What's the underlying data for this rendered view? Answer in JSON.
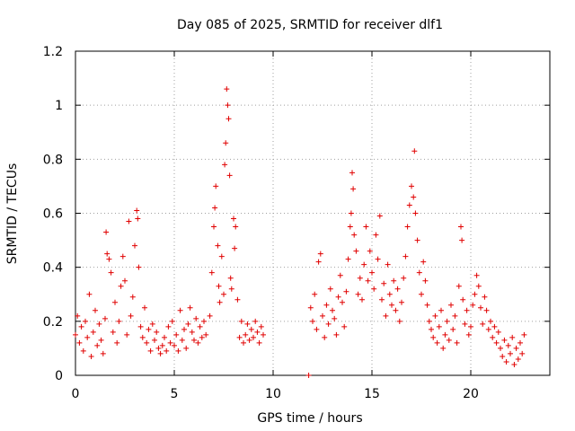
{
  "chart_data": {
    "type": "scatter",
    "title": "Day 085 of 2025, SRMTID for receiver dlf1",
    "xlabel": "GPS time / hours",
    "ylabel": "SRMTID / TECUs",
    "xlim": [
      0,
      24
    ],
    "ylim": [
      0,
      1.2
    ],
    "xticks": [
      0,
      5,
      10,
      15,
      20
    ],
    "xtick_labels": [
      "0",
      "5",
      "10",
      "15",
      "20"
    ],
    "yticks": [
      0,
      0.2,
      0.4,
      0.6,
      0.8,
      1,
      1.2
    ],
    "ytick_labels": [
      "0",
      "0.2",
      "0.4",
      "0.6",
      "0.8",
      "1",
      "1.2"
    ],
    "grid": true,
    "marker": "+",
    "color": "#e00000",
    "series": [
      {
        "name": "SRMTID",
        "points": [
          [
            0.0,
            0.15
          ],
          [
            0.1,
            0.22
          ],
          [
            0.2,
            0.12
          ],
          [
            0.3,
            0.18
          ],
          [
            0.4,
            0.09
          ],
          [
            0.5,
            0.2
          ],
          [
            0.6,
            0.14
          ],
          [
            0.7,
            0.3
          ],
          [
            0.8,
            0.07
          ],
          [
            0.9,
            0.16
          ],
          [
            1.0,
            0.24
          ],
          [
            1.1,
            0.11
          ],
          [
            1.2,
            0.19
          ],
          [
            1.3,
            0.13
          ],
          [
            1.4,
            0.08
          ],
          [
            1.5,
            0.21
          ],
          [
            1.55,
            0.53
          ],
          [
            1.6,
            0.45
          ],
          [
            1.7,
            0.43
          ],
          [
            1.8,
            0.38
          ],
          [
            1.9,
            0.16
          ],
          [
            2.0,
            0.27
          ],
          [
            2.1,
            0.12
          ],
          [
            2.2,
            0.2
          ],
          [
            2.3,
            0.33
          ],
          [
            2.4,
            0.44
          ],
          [
            2.5,
            0.35
          ],
          [
            2.6,
            0.15
          ],
          [
            2.7,
            0.57
          ],
          [
            2.8,
            0.22
          ],
          [
            2.9,
            0.29
          ],
          [
            3.0,
            0.48
          ],
          [
            3.1,
            0.61
          ],
          [
            3.15,
            0.58
          ],
          [
            3.2,
            0.4
          ],
          [
            3.3,
            0.18
          ],
          [
            3.4,
            0.14
          ],
          [
            3.5,
            0.25
          ],
          [
            3.6,
            0.12
          ],
          [
            3.7,
            0.17
          ],
          [
            3.8,
            0.09
          ],
          [
            3.9,
            0.19
          ],
          [
            4.0,
            0.13
          ],
          [
            4.1,
            0.16
          ],
          [
            4.2,
            0.1
          ],
          [
            4.3,
            0.08
          ],
          [
            4.4,
            0.11
          ],
          [
            4.5,
            0.14
          ],
          [
            4.6,
            0.09
          ],
          [
            4.7,
            0.18
          ],
          [
            4.8,
            0.12
          ],
          [
            4.9,
            0.2
          ],
          [
            5.0,
            0.11
          ],
          [
            5.1,
            0.15
          ],
          [
            5.2,
            0.09
          ],
          [
            5.3,
            0.24
          ],
          [
            5.4,
            0.13
          ],
          [
            5.5,
            0.17
          ],
          [
            5.6,
            0.1
          ],
          [
            5.7,
            0.19
          ],
          [
            5.8,
            0.25
          ],
          [
            5.9,
            0.16
          ],
          [
            6.0,
            0.13
          ],
          [
            6.1,
            0.21
          ],
          [
            6.2,
            0.12
          ],
          [
            6.3,
            0.18
          ],
          [
            6.4,
            0.14
          ],
          [
            6.5,
            0.2
          ],
          [
            6.6,
            0.15
          ],
          [
            6.8,
            0.22
          ],
          [
            6.9,
            0.38
          ],
          [
            7.0,
            0.55
          ],
          [
            7.05,
            0.62
          ],
          [
            7.1,
            0.7
          ],
          [
            7.2,
            0.48
          ],
          [
            7.25,
            0.33
          ],
          [
            7.3,
            0.27
          ],
          [
            7.4,
            0.44
          ],
          [
            7.5,
            0.3
          ],
          [
            7.55,
            0.78
          ],
          [
            7.6,
            0.86
          ],
          [
            7.65,
            1.06
          ],
          [
            7.7,
            1.0
          ],
          [
            7.75,
            0.95
          ],
          [
            7.8,
            0.74
          ],
          [
            7.85,
            0.36
          ],
          [
            7.9,
            0.32
          ],
          [
            8.0,
            0.58
          ],
          [
            8.05,
            0.47
          ],
          [
            8.1,
            0.55
          ],
          [
            8.2,
            0.28
          ],
          [
            8.3,
            0.14
          ],
          [
            8.4,
            0.2
          ],
          [
            8.5,
            0.12
          ],
          [
            8.6,
            0.15
          ],
          [
            8.7,
            0.19
          ],
          [
            8.8,
            0.13
          ],
          [
            8.9,
            0.17
          ],
          [
            9.0,
            0.14
          ],
          [
            9.1,
            0.2
          ],
          [
            9.2,
            0.16
          ],
          [
            9.3,
            0.12
          ],
          [
            9.4,
            0.18
          ],
          [
            9.5,
            0.15
          ],
          [
            11.8,
            0.0
          ],
          [
            11.9,
            0.25
          ],
          [
            12.0,
            0.2
          ],
          [
            12.1,
            0.3
          ],
          [
            12.2,
            0.17
          ],
          [
            12.3,
            0.42
          ],
          [
            12.4,
            0.45
          ],
          [
            12.5,
            0.22
          ],
          [
            12.6,
            0.14
          ],
          [
            12.7,
            0.26
          ],
          [
            12.8,
            0.19
          ],
          [
            12.9,
            0.32
          ],
          [
            13.0,
            0.24
          ],
          [
            13.1,
            0.21
          ],
          [
            13.2,
            0.15
          ],
          [
            13.3,
            0.29
          ],
          [
            13.4,
            0.37
          ],
          [
            13.5,
            0.27
          ],
          [
            13.6,
            0.18
          ],
          [
            13.7,
            0.31
          ],
          [
            13.8,
            0.43
          ],
          [
            13.9,
            0.55
          ],
          [
            13.95,
            0.6
          ],
          [
            14.0,
            0.75
          ],
          [
            14.05,
            0.69
          ],
          [
            14.1,
            0.52
          ],
          [
            14.2,
            0.46
          ],
          [
            14.3,
            0.3
          ],
          [
            14.4,
            0.36
          ],
          [
            14.5,
            0.28
          ],
          [
            14.6,
            0.41
          ],
          [
            14.7,
            0.55
          ],
          [
            14.8,
            0.35
          ],
          [
            14.9,
            0.46
          ],
          [
            15.0,
            0.38
          ],
          [
            15.1,
            0.32
          ],
          [
            15.2,
            0.52
          ],
          [
            15.3,
            0.43
          ],
          [
            15.4,
            0.59
          ],
          [
            15.5,
            0.28
          ],
          [
            15.6,
            0.34
          ],
          [
            15.7,
            0.22
          ],
          [
            15.8,
            0.41
          ],
          [
            15.9,
            0.3
          ],
          [
            16.0,
            0.26
          ],
          [
            16.1,
            0.35
          ],
          [
            16.2,
            0.24
          ],
          [
            16.3,
            0.32
          ],
          [
            16.4,
            0.2
          ],
          [
            16.5,
            0.27
          ],
          [
            16.6,
            0.36
          ],
          [
            16.7,
            0.44
          ],
          [
            16.8,
            0.55
          ],
          [
            16.9,
            0.63
          ],
          [
            17.0,
            0.7
          ],
          [
            17.1,
            0.66
          ],
          [
            17.15,
            0.83
          ],
          [
            17.2,
            0.6
          ],
          [
            17.3,
            0.5
          ],
          [
            17.4,
            0.38
          ],
          [
            17.5,
            0.3
          ],
          [
            17.6,
            0.42
          ],
          [
            17.7,
            0.35
          ],
          [
            17.8,
            0.26
          ],
          [
            17.9,
            0.2
          ],
          [
            18.0,
            0.17
          ],
          [
            18.1,
            0.14
          ],
          [
            18.2,
            0.22
          ],
          [
            18.3,
            0.12
          ],
          [
            18.4,
            0.18
          ],
          [
            18.5,
            0.24
          ],
          [
            18.6,
            0.1
          ],
          [
            18.7,
            0.15
          ],
          [
            18.8,
            0.2
          ],
          [
            18.9,
            0.13
          ],
          [
            19.0,
            0.26
          ],
          [
            19.1,
            0.17
          ],
          [
            19.2,
            0.22
          ],
          [
            19.3,
            0.12
          ],
          [
            19.4,
            0.33
          ],
          [
            19.5,
            0.55
          ],
          [
            19.55,
            0.5
          ],
          [
            19.6,
            0.28
          ],
          [
            19.7,
            0.19
          ],
          [
            19.8,
            0.24
          ],
          [
            19.9,
            0.15
          ],
          [
            20.0,
            0.18
          ],
          [
            20.1,
            0.26
          ],
          [
            20.2,
            0.3
          ],
          [
            20.3,
            0.37
          ],
          [
            20.4,
            0.33
          ],
          [
            20.5,
            0.25
          ],
          [
            20.6,
            0.19
          ],
          [
            20.7,
            0.29
          ],
          [
            20.8,
            0.24
          ],
          [
            20.9,
            0.17
          ],
          [
            21.0,
            0.2
          ],
          [
            21.1,
            0.14
          ],
          [
            21.2,
            0.18
          ],
          [
            21.3,
            0.12
          ],
          [
            21.4,
            0.16
          ],
          [
            21.5,
            0.1
          ],
          [
            21.6,
            0.07
          ],
          [
            21.7,
            0.13
          ],
          [
            21.8,
            0.05
          ],
          [
            21.9,
            0.11
          ],
          [
            22.0,
            0.08
          ],
          [
            22.1,
            0.14
          ],
          [
            22.2,
            0.04
          ],
          [
            22.3,
            0.1
          ],
          [
            22.4,
            0.06
          ],
          [
            22.5,
            0.12
          ],
          [
            22.6,
            0.08
          ],
          [
            22.7,
            0.15
          ]
        ]
      }
    ]
  }
}
